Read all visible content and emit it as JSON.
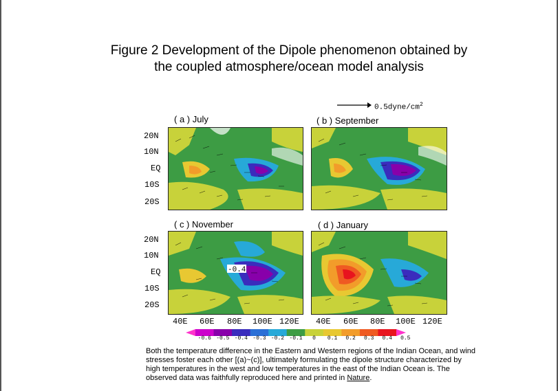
{
  "figure": {
    "title_line1": "Figure 2 Development of the Dipole phenomenon obtained by",
    "title_line2": "the coupled atmosphere/ocean model analysis"
  },
  "vector_reference": {
    "label": "0.5dyne/cm",
    "exponent": "2"
  },
  "panels": [
    {
      "label": "( a ) July"
    },
    {
      "label": "( b ) September"
    },
    {
      "label": "( c ) November"
    },
    {
      "label": "( d ) January"
    }
  ],
  "latitude_labels": [
    "20N",
    "10N",
    "EQ",
    "10S",
    "20S"
  ],
  "longitude_labels": [
    "40E",
    "60E",
    "80E",
    "100E",
    "120E"
  ],
  "colorbar": {
    "labels": [
      "-0.6",
      "-0.5",
      "-0.4",
      "-0.3",
      "-0.2",
      "-0.1",
      "0",
      "0.1",
      "0.2",
      "0.3",
      "0.4",
      "0.5"
    ],
    "colors": [
      "#ff33cc",
      "#cc00cc",
      "#8800aa",
      "#3a2cbd",
      "#2a6fd6",
      "#27a9d8",
      "#3d9c44",
      "#c8d23a",
      "#e8c832",
      "#f29c2a",
      "#ef5a22",
      "#e8141e",
      "#ff33cc"
    ]
  },
  "map_annotations": {
    "contour_value": "-0.4"
  },
  "caption": {
    "text": "Both the temperature difference in the Eastern and Western regions of the Indian Ocean, and wind stresses foster each other [(a)~(c)], ultimately formulating the dipole structure characterized by high temperatures in the west and low temperatures in the east of the Indian Ocean is. The observed data was faithfully reproduced here and printed in",
    "link": "Nature",
    "end": "."
  }
}
